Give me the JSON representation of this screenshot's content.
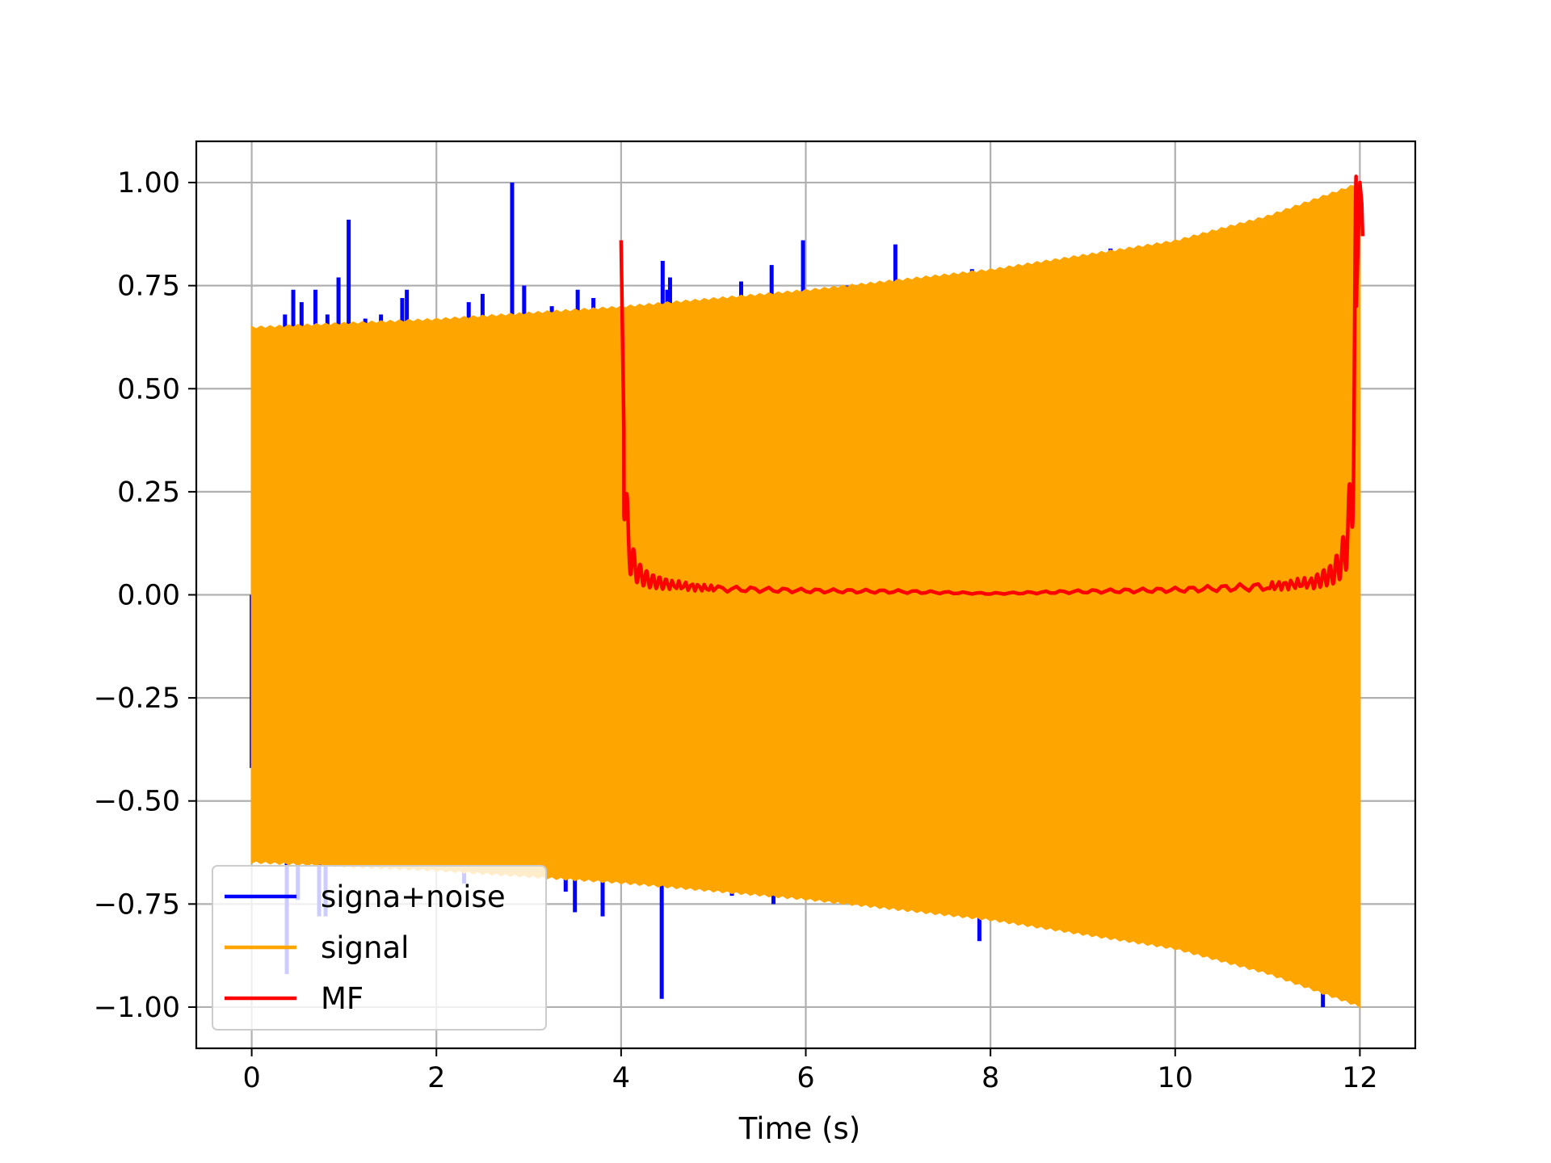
{
  "chart_data": {
    "type": "line",
    "title": "",
    "xlabel": "Time (s)",
    "ylabel": "",
    "xlim": [
      -0.6,
      12.6
    ],
    "ylim": [
      -1.1,
      1.1
    ],
    "x_ticks": [
      0,
      2,
      4,
      6,
      8,
      10,
      12
    ],
    "x_tick_labels": [
      "0",
      "2",
      "4",
      "6",
      "8",
      "10",
      "12"
    ],
    "y_ticks": [
      1.0,
      0.75,
      0.5,
      0.25,
      0.0,
      -0.25,
      -0.5,
      -0.75,
      -1.0
    ],
    "y_tick_labels": [
      "1.00",
      "0.75",
      "0.50",
      "0.25",
      "0.00",
      "−0.25",
      "−0.50",
      "−0.75",
      "−1.00"
    ],
    "grid": true,
    "legend_position": "lower-left",
    "series": [
      {
        "name": "signa+noise",
        "color": "#0000ff",
        "spikes": [
          {
            "x": 0.0,
            "y": -0.42
          },
          {
            "x": 0.36,
            "y": 0.68
          },
          {
            "x": 0.45,
            "y": 0.74
          },
          {
            "x": 0.54,
            "y": 0.71
          },
          {
            "x": 0.69,
            "y": 0.74
          },
          {
            "x": 0.82,
            "y": 0.68
          },
          {
            "x": 0.94,
            "y": 0.77
          },
          {
            "x": 1.05,
            "y": 0.91
          },
          {
            "x": 1.23,
            "y": 0.67
          },
          {
            "x": 1.4,
            "y": 0.68
          },
          {
            "x": 1.63,
            "y": 0.72
          },
          {
            "x": 1.68,
            "y": 0.74
          },
          {
            "x": 2.35,
            "y": 0.71
          },
          {
            "x": 2.5,
            "y": 0.73
          },
          {
            "x": 2.82,
            "y": 1.0
          },
          {
            "x": 2.95,
            "y": 0.75
          },
          {
            "x": 3.25,
            "y": 0.7
          },
          {
            "x": 3.53,
            "y": 0.74
          },
          {
            "x": 3.7,
            "y": 0.72
          },
          {
            "x": 4.45,
            "y": 0.81
          },
          {
            "x": 4.5,
            "y": 0.74
          },
          {
            "x": 4.53,
            "y": 0.77
          },
          {
            "x": 5.3,
            "y": 0.76
          },
          {
            "x": 5.63,
            "y": 0.8
          },
          {
            "x": 5.97,
            "y": 0.86
          },
          {
            "x": 6.45,
            "y": 0.75
          },
          {
            "x": 6.97,
            "y": 0.85
          },
          {
            "x": 7.8,
            "y": 0.79
          },
          {
            "x": 9.3,
            "y": 0.84
          },
          {
            "x": 0.38,
            "y": -0.92
          },
          {
            "x": 0.5,
            "y": -0.74
          },
          {
            "x": 0.73,
            "y": -0.78
          },
          {
            "x": 0.8,
            "y": -0.78
          },
          {
            "x": 2.3,
            "y": -0.7
          },
          {
            "x": 3.4,
            "y": -0.72
          },
          {
            "x": 3.5,
            "y": -0.77
          },
          {
            "x": 3.8,
            "y": -0.78
          },
          {
            "x": 4.44,
            "y": -0.98
          },
          {
            "x": 5.2,
            "y": -0.73
          },
          {
            "x": 5.65,
            "y": -0.75
          },
          {
            "x": 7.88,
            "y": -0.84
          },
          {
            "x": 11.6,
            "y": -1.0
          }
        ]
      },
      {
        "name": "signal",
        "color": "#ffa500",
        "envelope": {
          "x": [
            0,
            2,
            4,
            6,
            8,
            10,
            11,
            11.5,
            12
          ],
          "upper": [
            0.65,
            0.67,
            0.7,
            0.74,
            0.79,
            0.86,
            0.92,
            0.96,
            1.0
          ]
        }
      },
      {
        "name": "MF",
        "color": "#ff0000",
        "x": [
          4.0,
          4.03,
          4.05,
          4.08,
          4.1,
          4.14,
          4.2,
          4.3,
          4.5,
          5.0,
          6.0,
          7.0,
          8.0,
          9.0,
          10.0,
          11.0,
          11.5,
          11.7,
          11.8,
          11.85,
          11.9,
          11.93,
          11.96,
          12.0,
          12.02,
          12.03
        ],
        "values": [
          0.86,
          0.4,
          0.2,
          0.12,
          0.1,
          0.07,
          0.05,
          0.035,
          0.025,
          0.015,
          0.01,
          0.008,
          0.003,
          0.008,
          0.012,
          0.02,
          0.03,
          0.05,
          0.08,
          0.12,
          0.2,
          0.4,
          0.7,
          1.0,
          0.95,
          0.87
        ]
      }
    ]
  }
}
